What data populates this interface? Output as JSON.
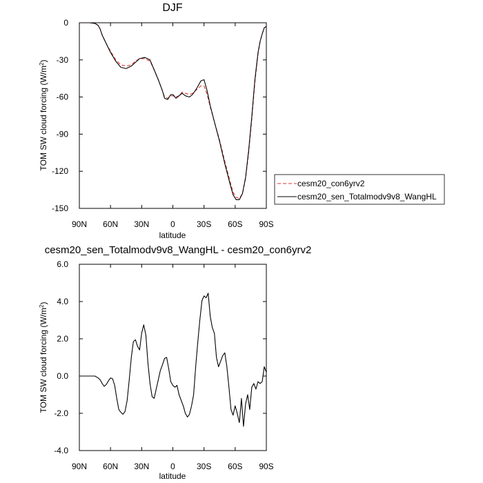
{
  "chart_data": [
    {
      "type": "line",
      "title": "DJF",
      "xlabel": "latitude",
      "ylabel_main": "TOM SW cloud forcing (W/m",
      "ylabel_sup": "2",
      "ylabel_close": ")",
      "x_direction": "north-to-south",
      "xlim": [
        90,
        -90
      ],
      "ylim": [
        -150,
        0
      ],
      "xticks": [
        {
          "value": 90,
          "label": "90N"
        },
        {
          "value": 60,
          "label": "60N"
        },
        {
          "value": 30,
          "label": "30N"
        },
        {
          "value": 0,
          "label": "0"
        },
        {
          "value": -30,
          "label": "30S"
        },
        {
          "value": -60,
          "label": "60S"
        },
        {
          "value": -90,
          "label": "90S"
        }
      ],
      "yticks": [
        {
          "value": 0,
          "label": "0"
        },
        {
          "value": -30,
          "label": "-30"
        },
        {
          "value": -60,
          "label": "-60"
        },
        {
          "value": -90,
          "label": "-90"
        },
        {
          "value": -120,
          "label": "-120"
        },
        {
          "value": -150,
          "label": "-150"
        }
      ],
      "legend_position": "right",
      "series": [
        {
          "name": "cesm20_con6yrv2",
          "color": "#e03030",
          "dash": "dashed",
          "points": [
            [
              90,
              0
            ],
            [
              80,
              0
            ],
            [
              75,
              -0.5
            ],
            [
              72,
              -2
            ],
            [
              70,
              -5
            ],
            [
              68,
              -10
            ],
            [
              64,
              -17
            ],
            [
              60,
              -23
            ],
            [
              55,
              -30
            ],
            [
              50,
              -34
            ],
            [
              45,
              -35
            ],
            [
              40,
              -34
            ],
            [
              36,
              -31
            ],
            [
              32,
              -29
            ],
            [
              27,
              -29
            ],
            [
              22,
              -31
            ],
            [
              18,
              -38
            ],
            [
              14,
              -46
            ],
            [
              10,
              -55
            ],
            [
              8,
              -60
            ],
            [
              5,
              -61
            ],
            [
              2,
              -59
            ],
            [
              0,
              -59
            ],
            [
              -3,
              -60
            ],
            [
              -6,
              -59
            ],
            [
              -9,
              -56
            ],
            [
              -12,
              -57
            ],
            [
              -16,
              -58
            ],
            [
              -19,
              -57
            ],
            [
              -23,
              -54
            ],
            [
              -27,
              -51
            ],
            [
              -30,
              -51
            ],
            [
              -33,
              -58
            ],
            [
              -36,
              -68
            ],
            [
              -40,
              -80
            ],
            [
              -45,
              -95
            ],
            [
              -50,
              -112
            ],
            [
              -55,
              -128
            ],
            [
              -58,
              -137
            ],
            [
              -61,
              -141
            ],
            [
              -64,
              -142
            ],
            [
              -67,
              -138
            ],
            [
              -70,
              -126
            ],
            [
              -73,
              -105
            ],
            [
              -76,
              -78
            ],
            [
              -79,
              -48
            ],
            [
              -82,
              -25
            ],
            [
              -84,
              -15
            ],
            [
              -86,
              -9
            ],
            [
              -88,
              -4
            ],
            [
              -90,
              -3
            ]
          ]
        },
        {
          "name": "cesm20_sen_Totalmodv9v8_WangHL",
          "color": "#000000",
          "dash": "solid",
          "points": [
            [
              90,
              0
            ],
            [
              80,
              0
            ],
            [
              75,
              -0.5
            ],
            [
              72,
              -2
            ],
            [
              70,
              -5
            ],
            [
              68,
              -10
            ],
            [
              64,
              -17
            ],
            [
              60,
              -24
            ],
            [
              55,
              -31
            ],
            [
              50,
              -36
            ],
            [
              45,
              -37
            ],
            [
              40,
              -35
            ],
            [
              36,
              -32
            ],
            [
              32,
              -29
            ],
            [
              27,
              -28
            ],
            [
              22,
              -30
            ],
            [
              18,
              -38
            ],
            [
              14,
              -46
            ],
            [
              10,
              -55
            ],
            [
              8,
              -61
            ],
            [
              5,
              -62
            ],
            [
              2,
              -58
            ],
            [
              0,
              -58
            ],
            [
              -3,
              -61
            ],
            [
              -6,
              -59
            ],
            [
              -9,
              -57
            ],
            [
              -12,
              -59
            ],
            [
              -16,
              -60
            ],
            [
              -19,
              -58
            ],
            [
              -23,
              -53
            ],
            [
              -27,
              -47
            ],
            [
              -30,
              -46
            ],
            [
              -33,
              -55
            ],
            [
              -36,
              -67
            ],
            [
              -40,
              -80
            ],
            [
              -45,
              -96
            ],
            [
              -50,
              -114
            ],
            [
              -55,
              -130
            ],
            [
              -58,
              -139
            ],
            [
              -61,
              -143
            ],
            [
              -64,
              -143
            ],
            [
              -67,
              -138
            ],
            [
              -70,
              -125
            ],
            [
              -73,
              -103
            ],
            [
              -76,
              -76
            ],
            [
              -79,
              -46
            ],
            [
              -82,
              -24
            ],
            [
              -84,
              -15
            ],
            [
              -86,
              -9
            ],
            [
              -88,
              -4
            ],
            [
              -90,
              -3
            ]
          ]
        }
      ]
    },
    {
      "type": "line",
      "title": "cesm20_sen_Totalmodv9v8_WangHL - cesm20_con6yrv2",
      "xlabel": "latitude",
      "ylabel_main": "TOM SW cloud forcing (W/m",
      "ylabel_sup": "2",
      "ylabel_close": ")",
      "x_direction": "north-to-south",
      "xlim": [
        90,
        -90
      ],
      "ylim": [
        -4.0,
        6.0
      ],
      "xticks": [
        {
          "value": 90,
          "label": "90N"
        },
        {
          "value": 60,
          "label": "60N"
        },
        {
          "value": 30,
          "label": "30N"
        },
        {
          "value": 0,
          "label": "0"
        },
        {
          "value": -30,
          "label": "30S"
        },
        {
          "value": -60,
          "label": "60S"
        },
        {
          "value": -90,
          "label": "90S"
        }
      ],
      "yticks": [
        {
          "value": 6,
          "label": "6.0"
        },
        {
          "value": 4,
          "label": "4.0"
        },
        {
          "value": 2,
          "label": "2.0"
        },
        {
          "value": 0,
          "label": "0.0"
        },
        {
          "value": -2,
          "label": "-2.0"
        },
        {
          "value": -4,
          "label": "-4.0"
        }
      ],
      "series": [
        {
          "name": "",
          "color": "#000000",
          "dash": "solid",
          "points": [
            [
              90,
              0
            ],
            [
              75,
              0
            ],
            [
              72,
              -0.1
            ],
            [
              70,
              -0.2
            ],
            [
              68,
              -0.4
            ],
            [
              66,
              -0.55
            ],
            [
              64,
              -0.45
            ],
            [
              62,
              -0.25
            ],
            [
              60,
              -0.1
            ],
            [
              58,
              -0.15
            ],
            [
              56,
              -0.5
            ],
            [
              54,
              -1.2
            ],
            [
              52,
              -1.8
            ],
            [
              50,
              -1.95
            ],
            [
              48,
              -2.05
            ],
            [
              46,
              -1.9
            ],
            [
              44,
              -1.3
            ],
            [
              42,
              -0.2
            ],
            [
              40,
              1.0
            ],
            [
              38,
              1.85
            ],
            [
              36,
              1.95
            ],
            [
              34,
              1.6
            ],
            [
              32,
              1.4
            ],
            [
              30,
              2.3
            ],
            [
              28,
              2.75
            ],
            [
              26,
              2.2
            ],
            [
              24,
              0.7
            ],
            [
              22,
              -0.4
            ],
            [
              20,
              -1.1
            ],
            [
              18,
              -1.2
            ],
            [
              16,
              -0.7
            ],
            [
              14,
              -0.2
            ],
            [
              12,
              0.3
            ],
            [
              10,
              0.6
            ],
            [
              8,
              0.95
            ],
            [
              6,
              1.0
            ],
            [
              4,
              0.4
            ],
            [
              2,
              -0.3
            ],
            [
              0,
              -0.5
            ],
            [
              -2,
              -0.6
            ],
            [
              -4,
              -0.5
            ],
            [
              -6,
              -1.0
            ],
            [
              -8,
              -1.3
            ],
            [
              -10,
              -1.6
            ],
            [
              -12,
              -2.0
            ],
            [
              -14,
              -2.2
            ],
            [
              -16,
              -2.05
            ],
            [
              -18,
              -1.6
            ],
            [
              -20,
              -1.0
            ],
            [
              -22,
              0.5
            ],
            [
              -24,
              1.8
            ],
            [
              -26,
              3.0
            ],
            [
              -28,
              4.05
            ],
            [
              -30,
              4.3
            ],
            [
              -32,
              4.2
            ],
            [
              -34,
              4.45
            ],
            [
              -36,
              3.2
            ],
            [
              -38,
              2.6
            ],
            [
              -40,
              2.3
            ],
            [
              -42,
              1.0
            ],
            [
              -44,
              0.5
            ],
            [
              -46,
              0.8
            ],
            [
              -48,
              1.1
            ],
            [
              -50,
              1.25
            ],
            [
              -52,
              0.5
            ],
            [
              -54,
              -0.6
            ],
            [
              -56,
              -1.8
            ],
            [
              -58,
              -2.1
            ],
            [
              -60,
              -1.6
            ],
            [
              -62,
              -2.0
            ],
            [
              -64,
              -2.5
            ],
            [
              -66,
              -1.2
            ],
            [
              -68,
              -2.7
            ],
            [
              -70,
              -1.5
            ],
            [
              -72,
              -1.0
            ],
            [
              -74,
              -1.8
            ],
            [
              -76,
              -0.6
            ],
            [
              -78,
              -0.4
            ],
            [
              -80,
              -0.7
            ],
            [
              -82,
              -0.3
            ],
            [
              -84,
              -0.4
            ],
            [
              -86,
              -0.3
            ],
            [
              -88,
              0.5
            ],
            [
              -90,
              0.2
            ]
          ]
        }
      ]
    }
  ]
}
